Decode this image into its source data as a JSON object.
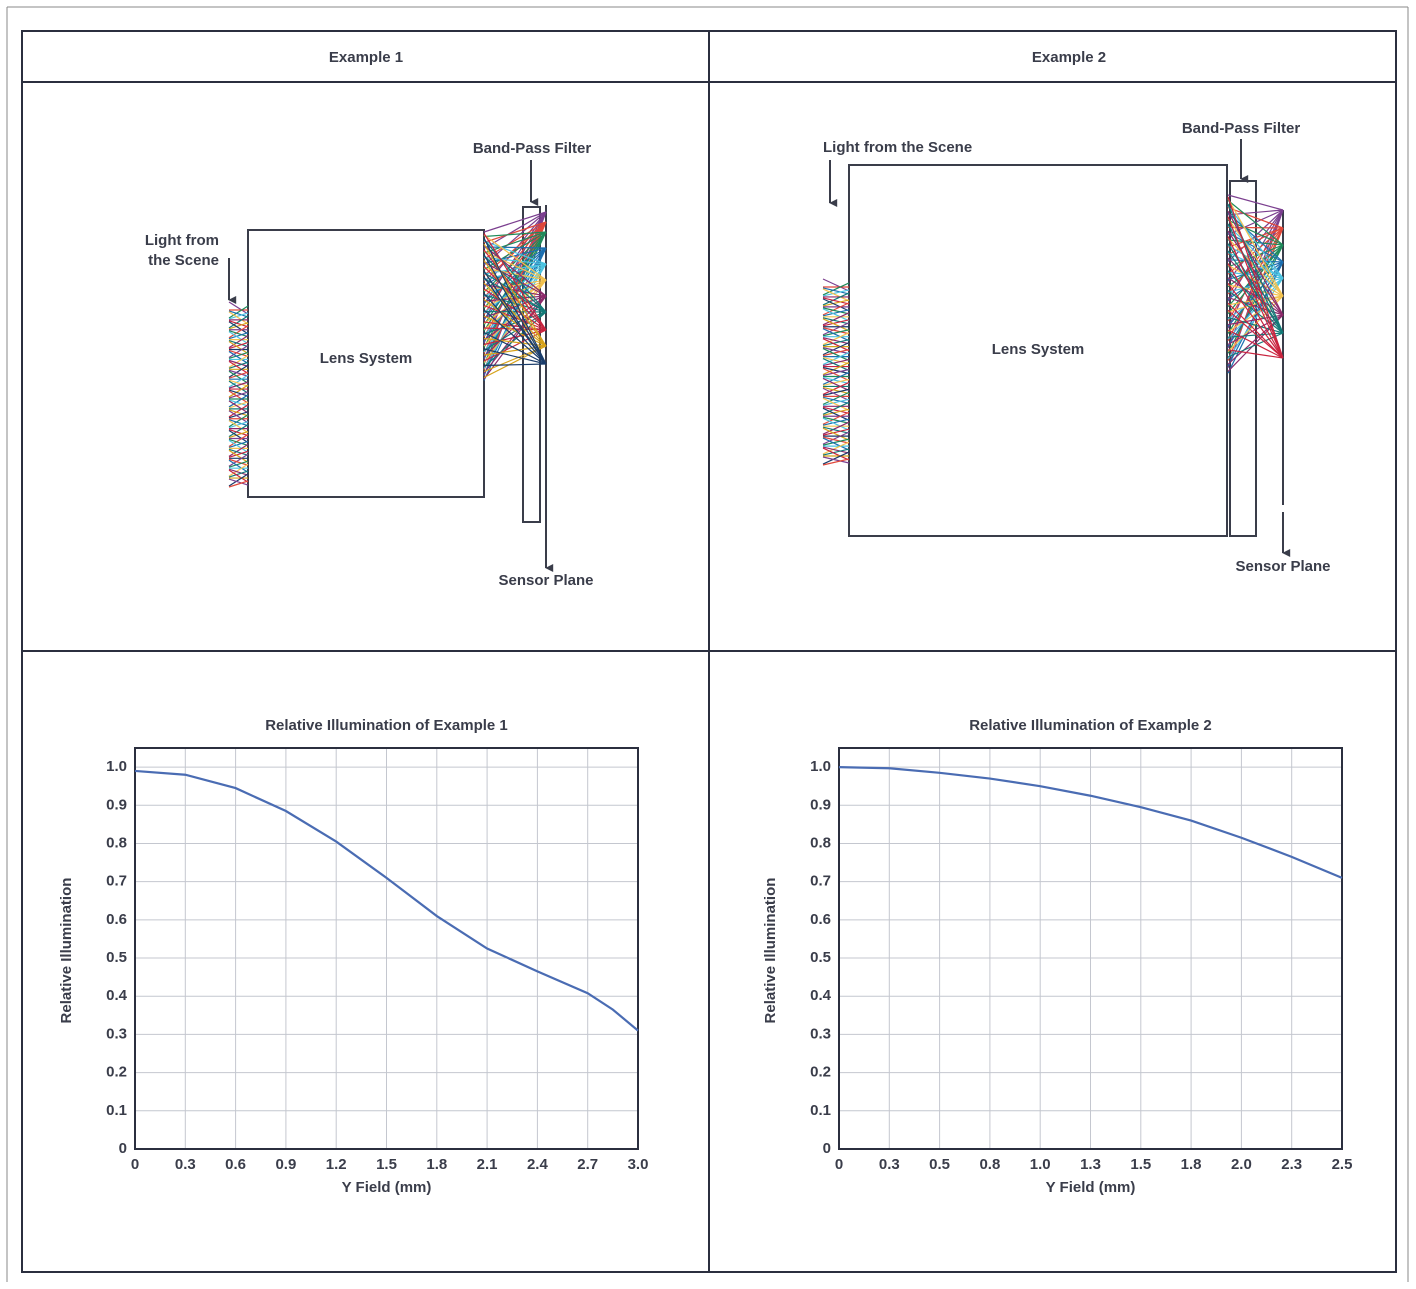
{
  "panels": {
    "headers": [
      "Example 1",
      "Example 2"
    ]
  },
  "diagrams": [
    {
      "light_label": [
        "Light from",
        "the Scene"
      ],
      "lens_label": "Lens System",
      "filter_label": "Band-Pass Filter",
      "sensor_label": "Sensor Plane"
    },
    {
      "light_label": [
        "Light from the Scene"
      ],
      "lens_label": "Lens System",
      "filter_label": "Band-Pass Filter",
      "sensor_label": "Sensor Plane"
    }
  ],
  "chart_data": [
    {
      "type": "line",
      "title": "Relative Illumination of Example 1",
      "x_label": "Y Field (mm)",
      "y_label": "Relative Illumination",
      "x": [
        0,
        0.3,
        0.6,
        0.9,
        1.2,
        1.5,
        1.8,
        2.1,
        2.4,
        2.7,
        2.85,
        3.0
      ],
      "values": [
        0.99,
        0.98,
        0.945,
        0.885,
        0.805,
        0.71,
        0.61,
        0.525,
        0.465,
        0.408,
        0.365,
        0.31
      ],
      "color": "#4a6cb3",
      "grid": true,
      "xlim": [
        0,
        3
      ],
      "ylim": [
        0,
        1.05
      ],
      "xticks": [
        0,
        0.3,
        0.6,
        0.9,
        1.2,
        1.5,
        1.8,
        2.1,
        2.4,
        2.7,
        {
          "value": 3,
          "label": "3.0"
        }
      ],
      "yticks": [
        0,
        0.1,
        0.2,
        0.3,
        0.4,
        0.5,
        0.6,
        0.7,
        0.8,
        0.9,
        {
          "value": 1,
          "label": "1.0"
        }
      ]
    },
    {
      "type": "line",
      "title": "Relative Illumination of Example 2",
      "x_label": "Y Field (mm)",
      "y_label": "Relative Illumination",
      "x": [
        0,
        0.25,
        0.5,
        0.75,
        1.0,
        1.25,
        1.5,
        1.75,
        2.0,
        2.25,
        2.5
      ],
      "values": [
        1.0,
        0.997,
        0.985,
        0.97,
        0.95,
        0.925,
        0.895,
        0.86,
        0.815,
        0.765,
        0.71
      ],
      "color": "#4a6cb3",
      "grid": true,
      "xlim": [
        0,
        2.5
      ],
      "ylim": [
        0,
        1.05
      ],
      "xticks": [
        0,
        {
          "value": 0.25,
          "label": "0.3"
        },
        0.5,
        {
          "value": 0.75,
          "label": "0.8"
        },
        {
          "value": 1,
          "label": "1.0"
        },
        {
          "value": 1.25,
          "label": "1.3"
        },
        1.5,
        {
          "value": 1.75,
          "label": "1.8"
        },
        {
          "value": 2,
          "label": "2.0"
        },
        {
          "value": 2.25,
          "label": "2.3"
        },
        2.5
      ],
      "yticks": [
        0,
        0.1,
        0.2,
        0.3,
        0.4,
        0.5,
        0.6,
        0.7,
        0.8,
        0.9,
        {
          "value": 1,
          "label": "1.0"
        }
      ]
    }
  ]
}
